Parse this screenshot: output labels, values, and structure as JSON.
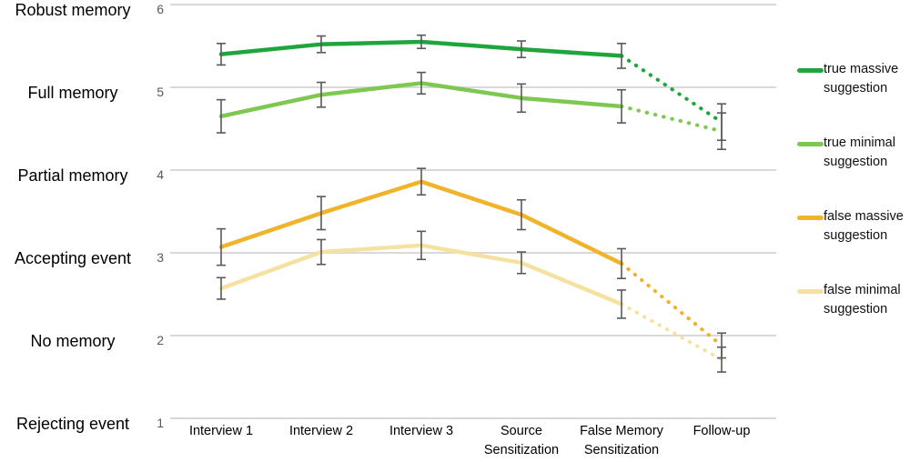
{
  "chart_data": {
    "type": "line",
    "title": "",
    "x": {
      "categories": [
        {
          "lines": [
            "Interview 1"
          ]
        },
        {
          "lines": [
            "Interview 2"
          ]
        },
        {
          "lines": [
            "Interview 3"
          ]
        },
        {
          "lines": [
            "Source",
            "Sensitization"
          ]
        },
        {
          "lines": [
            "False Memory",
            "Sensitization"
          ]
        },
        {
          "lines": [
            "Follow-up"
          ]
        }
      ]
    },
    "y": {
      "min": 1,
      "max": 6,
      "tick_values": [
        6,
        5,
        4,
        3,
        2,
        1
      ],
      "tick_labels": [
        "6",
        "5",
        "4",
        "3",
        "2",
        "1"
      ],
      "category_labels": [
        "Robust memory",
        "Full memory",
        "Partial memory",
        "Accepting event",
        "No memory",
        "Rejecting event"
      ],
      "grid": true
    },
    "series": [
      {
        "name": "true massive suggestion",
        "legend_lines": [
          "true massive",
          "suggestion"
        ],
        "color": "#1fa53c",
        "values": [
          5.4,
          5.52,
          5.55,
          5.46,
          5.38,
          4.58
        ],
        "errors": [
          0.13,
          0.1,
          0.08,
          0.1,
          0.15,
          0.22
        ],
        "dotted_from": 4
      },
      {
        "name": "true minimal suggestion",
        "legend_lines": [
          "true minimal",
          "suggestion"
        ],
        "color": "#7dc850",
        "values": [
          4.65,
          4.91,
          5.05,
          4.87,
          4.77,
          4.47
        ],
        "errors": [
          0.2,
          0.15,
          0.13,
          0.17,
          0.2,
          0.22
        ],
        "dotted_from": 4
      },
      {
        "name": "false massive suggestion",
        "legend_lines": [
          "false massive",
          "suggestion"
        ],
        "color": "#f0b32a",
        "values": [
          3.07,
          3.48,
          3.86,
          3.46,
          2.87,
          1.88
        ],
        "errors": [
          0.22,
          0.2,
          0.16,
          0.18,
          0.18,
          0.15
        ],
        "dotted_from": 4
      },
      {
        "name": "false minimal suggestion",
        "legend_lines": [
          "false minimal",
          "suggestion"
        ],
        "color": "#f6e2a0",
        "values": [
          2.57,
          3.01,
          3.09,
          2.88,
          2.38,
          1.71
        ],
        "errors": [
          0.13,
          0.15,
          0.17,
          0.13,
          0.17,
          0.15
        ],
        "dotted_from": 4
      }
    ],
    "style": {
      "gridline_color": "#d9d9d9",
      "error_bar_color": "#595959",
      "background": "#ffffff"
    },
    "legend_position": "right"
  }
}
